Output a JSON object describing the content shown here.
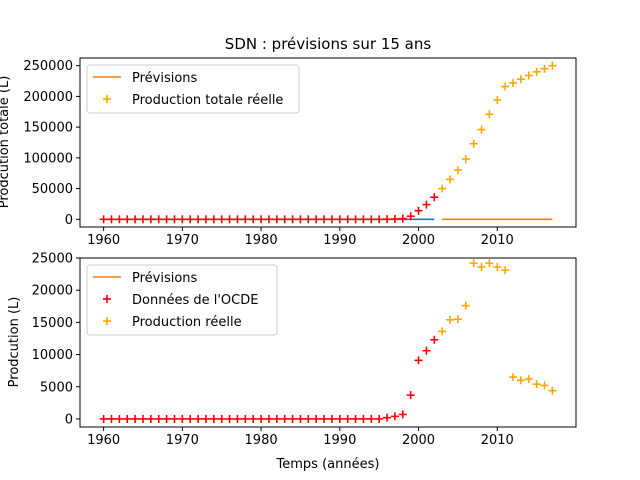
{
  "chart_data": [
    {
      "type": "line",
      "title": "SDN : prévisions sur 15 ans",
      "xlabel": "",
      "ylabel": "Prodcution totale (L)",
      "xlim": [
        1957,
        2020
      ],
      "ylim": [
        -12500,
        262500
      ],
      "xticks": [
        1960,
        1970,
        1980,
        1990,
        2000,
        2010
      ],
      "yticks": [
        0,
        50000,
        100000,
        150000,
        200000,
        250000
      ],
      "legend_position": "upper-left",
      "legend": [
        "Prévisions",
        "Production totale réelle"
      ],
      "series": [
        {
          "name": "Prévisions",
          "kind": "line",
          "color": "#ff7f0e",
          "x": [
            2003,
            2017
          ],
          "y": [
            0,
            0
          ]
        },
        {
          "name": "",
          "kind": "line",
          "color": "#1f77b4",
          "x": [
            1960,
            2002
          ],
          "y": [
            0,
            0
          ]
        },
        {
          "name": "",
          "kind": "scatter",
          "marker": "+",
          "color": "#ff0000",
          "x": [
            1960,
            1961,
            1962,
            1963,
            1964,
            1965,
            1966,
            1967,
            1968,
            1969,
            1970,
            1971,
            1972,
            1973,
            1974,
            1975,
            1976,
            1977,
            1978,
            1979,
            1980,
            1981,
            1982,
            1983,
            1984,
            1985,
            1986,
            1987,
            1988,
            1989,
            1990,
            1991,
            1992,
            1993,
            1994,
            1995,
            1996,
            1997,
            1998,
            1999,
            2000,
            2001,
            2002
          ],
          "y": [
            0,
            0,
            0,
            0,
            0,
            0,
            0,
            0,
            0,
            0,
            0,
            0,
            0,
            0,
            0,
            0,
            0,
            0,
            0,
            0,
            0,
            0,
            0,
            0,
            0,
            0,
            0,
            0,
            0,
            0,
            0,
            0,
            0,
            0,
            0,
            0,
            200,
            500,
            1200,
            5000,
            14000,
            24000,
            36000
          ]
        },
        {
          "name": "Production totale réelle",
          "kind": "scatter",
          "marker": "+",
          "color": "#ffa500",
          "x": [
            2003,
            2004,
            2005,
            2006,
            2007,
            2008,
            2009,
            2010,
            2011,
            2012,
            2013,
            2014,
            2015,
            2016,
            2017
          ],
          "y": [
            50000,
            65000,
            80000,
            98000,
            123000,
            146000,
            171000,
            194000,
            216000,
            222000,
            228000,
            234000,
            240000,
            245000,
            250000
          ]
        }
      ]
    },
    {
      "type": "scatter",
      "title": "",
      "xlabel": "Temps (années)",
      "ylabel": "Prodcution (L)",
      "xlim": [
        1957,
        2020
      ],
      "ylim": [
        -1250,
        25000
      ],
      "xticks": [
        1960,
        1970,
        1980,
        1990,
        2000,
        2010
      ],
      "yticks": [
        0,
        5000,
        10000,
        15000,
        20000,
        25000
      ],
      "legend_position": "upper-left",
      "legend": [
        "Prévisions",
        "Données de l'OCDE",
        "Production réelle"
      ],
      "series": [
        {
          "name": "Prévisions",
          "kind": "line",
          "color": "#ff7f0e",
          "x": [],
          "y": []
        },
        {
          "name": "Données de l'OCDE",
          "kind": "scatter",
          "marker": "+",
          "color": "#ff0000",
          "x": [
            1960,
            1961,
            1962,
            1963,
            1964,
            1965,
            1966,
            1967,
            1968,
            1969,
            1970,
            1971,
            1972,
            1973,
            1974,
            1975,
            1976,
            1977,
            1978,
            1979,
            1980,
            1981,
            1982,
            1983,
            1984,
            1985,
            1986,
            1987,
            1988,
            1989,
            1990,
            1991,
            1992,
            1993,
            1994,
            1995,
            1996,
            1997,
            1998,
            1999,
            2000,
            2001,
            2002
          ],
          "y": [
            0,
            0,
            0,
            0,
            0,
            0,
            0,
            0,
            0,
            0,
            0,
            0,
            0,
            0,
            0,
            0,
            0,
            0,
            0,
            0,
            0,
            0,
            0,
            0,
            0,
            0,
            0,
            0,
            0,
            0,
            0,
            0,
            0,
            0,
            0,
            0,
            200,
            400,
            700,
            3700,
            9100,
            10600,
            12300
          ]
        },
        {
          "name": "Production réelle",
          "kind": "scatter",
          "marker": "+",
          "color": "#ffa500",
          "x": [
            2003,
            2004,
            2005,
            2006,
            2007,
            2008,
            2009,
            2010,
            2011,
            2012,
            2013,
            2014,
            2015,
            2016,
            2017
          ],
          "y": [
            13600,
            15400,
            15500,
            17600,
            24200,
            23600,
            24200,
            23600,
            23100,
            6500,
            6000,
            6200,
            5400,
            5200,
            4400
          ]
        }
      ]
    }
  ]
}
